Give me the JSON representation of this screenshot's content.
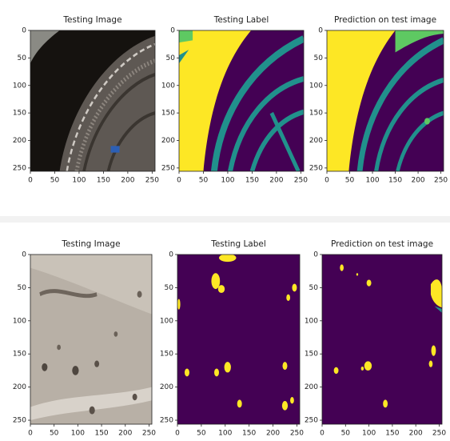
{
  "chart_data": [
    {
      "type": "image",
      "title": "Testing Image",
      "xlim": [
        0,
        256
      ],
      "ylim": [
        256,
        0
      ],
      "xticks": [
        0,
        50,
        100,
        150,
        200,
        250
      ],
      "yticks": [
        0,
        50,
        100,
        150,
        200,
        250
      ]
    },
    {
      "type": "image",
      "title": "Testing Label",
      "xlim": [
        0,
        256
      ],
      "ylim": [
        256,
        0
      ],
      "xticks": [
        0,
        50,
        100,
        150,
        200,
        250
      ],
      "yticks": [
        0,
        50,
        100,
        150,
        200,
        250
      ]
    },
    {
      "type": "image",
      "title": "Prediction on test image",
      "xlim": [
        0,
        256
      ],
      "ylim": [
        256,
        0
      ],
      "xticks": [
        0,
        50,
        100,
        150,
        200,
        250
      ],
      "yticks": [
        0,
        50,
        100,
        150,
        200,
        250
      ]
    },
    {
      "type": "image",
      "title": "Testing Image",
      "xlim": [
        0,
        256
      ],
      "ylim": [
        256,
        0
      ],
      "xticks": [
        0,
        50,
        100,
        150,
        200,
        250
      ],
      "yticks": [
        0,
        50,
        100,
        150,
        200,
        250
      ]
    },
    {
      "type": "image",
      "title": "Testing Label",
      "xlim": [
        0,
        256
      ],
      "ylim": [
        256,
        0
      ],
      "xticks": [
        0,
        50,
        100,
        150,
        200,
        250
      ],
      "yticks": [
        0,
        50,
        100,
        150,
        200,
        250
      ]
    },
    {
      "type": "image",
      "title": "Prediction on test image",
      "xlim": [
        0,
        256
      ],
      "ylim": [
        256,
        0
      ],
      "xticks": [
        0,
        50,
        100,
        150,
        200,
        250
      ],
      "yticks": [
        0,
        50,
        100,
        150,
        200,
        250
      ]
    }
  ]
}
